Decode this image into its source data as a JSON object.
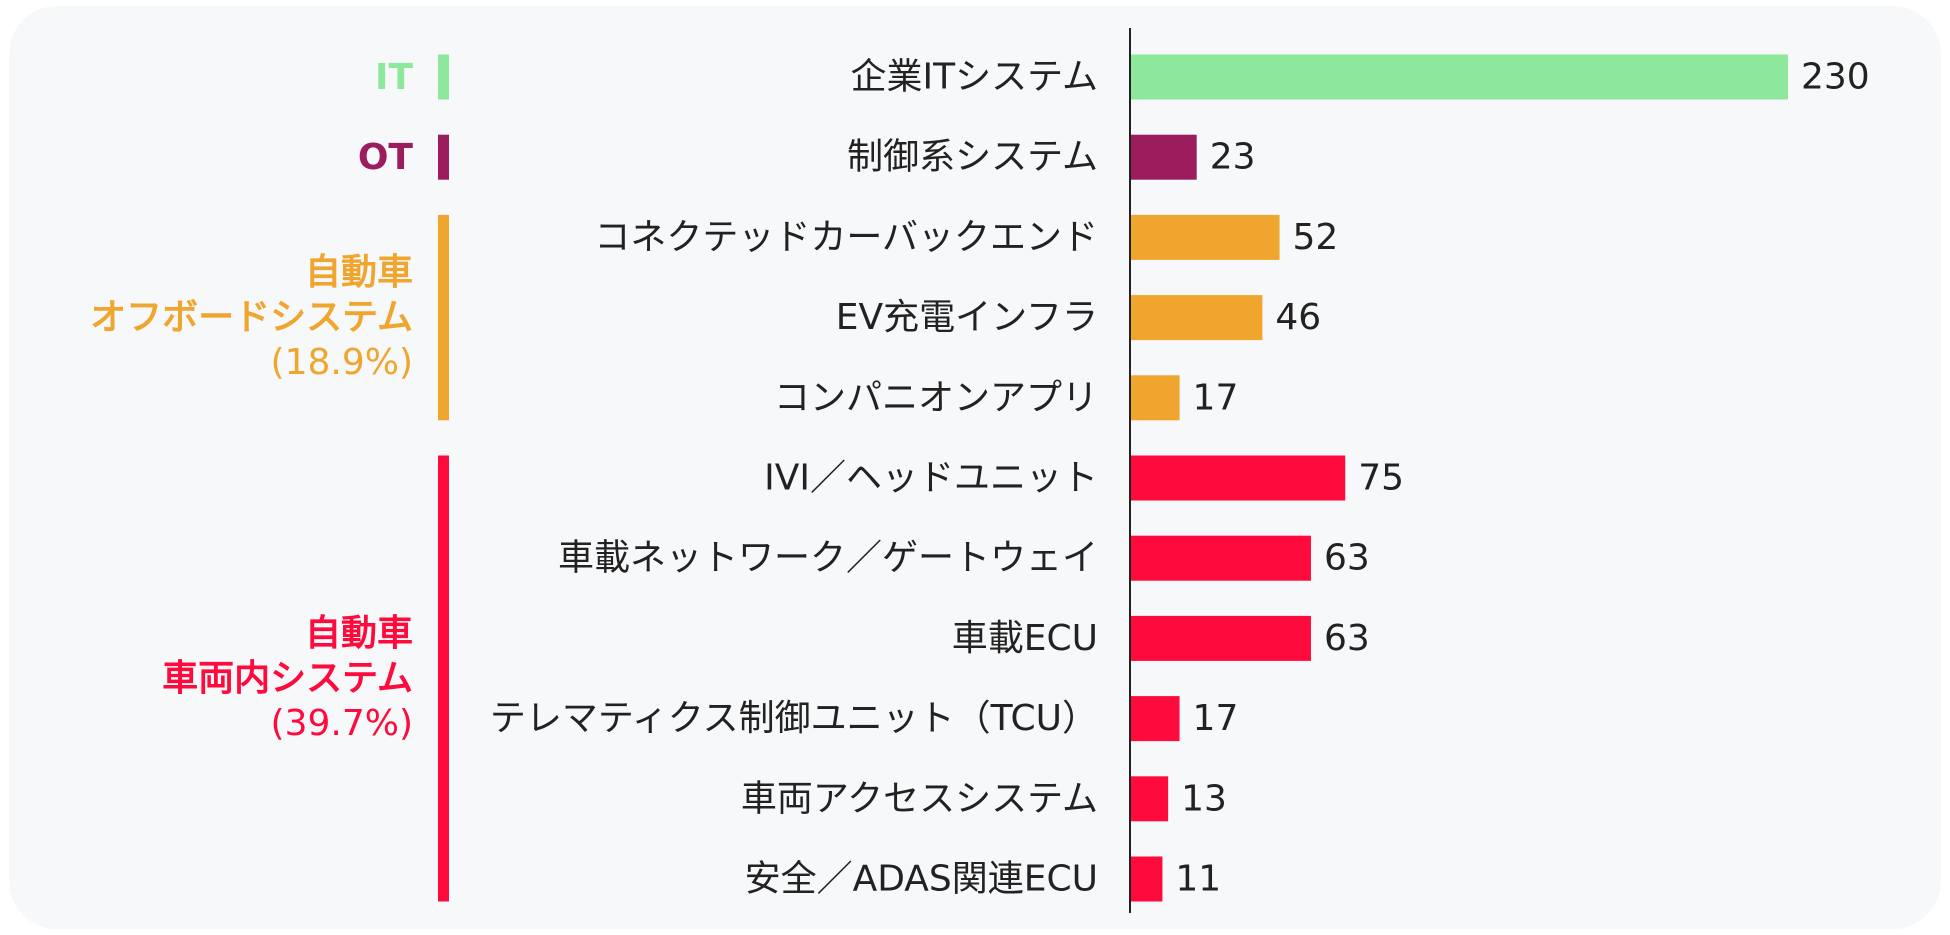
{
  "chart_data": {
    "type": "bar",
    "orientation": "horizontal",
    "title": "",
    "xlabel": "",
    "ylabel": "",
    "xlim": [
      0,
      230
    ],
    "grid": false,
    "legend": "none",
    "categories": [
      "企業ITシステム",
      "制御系システム",
      "コネクテッドカーバックエンド",
      "EV充電インフラ",
      "コンパニオンアプリ",
      "IVI／ヘッドユニット",
      "車載ネットワーク／ゲートウェイ",
      "車載ECU",
      "テレマティクス制御ユニット（TCU）",
      "車両アクセスシステム",
      "安全／ADAS関連ECU"
    ],
    "values": [
      230,
      23,
      52,
      46,
      17,
      75,
      63,
      63,
      17,
      13,
      11
    ],
    "groups": [
      {
        "key": "it",
        "lines": [
          "IT"
        ],
        "pct": "",
        "color": "#8ee89c",
        "start": 0,
        "end": 0
      },
      {
        "key": "ot",
        "lines": [
          "OT"
        ],
        "pct": "",
        "color": "#9b1d5d",
        "start": 1,
        "end": 1
      },
      {
        "key": "offboard",
        "lines": [
          "自動車",
          "オフボードシステム"
        ],
        "pct": "(18.9%)",
        "color": "#f0a52f",
        "start": 2,
        "end": 4
      },
      {
        "key": "invehicle",
        "lines": [
          "自動車",
          "車両内システム"
        ],
        "pct": "(39.7%)",
        "color": "#ff0a3c",
        "start": 5,
        "end": 10
      }
    ]
  }
}
